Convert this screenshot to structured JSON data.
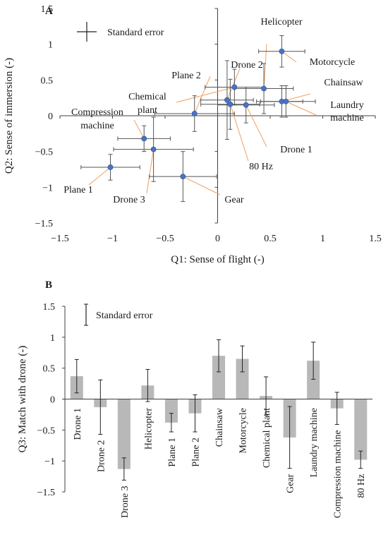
{
  "chart_data": [
    {
      "type": "scatter",
      "panel_label": "A",
      "xlabel": "Q1: Sense of flight (-)",
      "ylabel": "Q2: Sense of immersion (-)",
      "xlim": [
        -1.5,
        1.5
      ],
      "ylim": [
        -1.5,
        1.5
      ],
      "xticks": [
        -1.5,
        -1,
        -0.5,
        0,
        0.5,
        1,
        1.5
      ],
      "yticks": [
        -1.5,
        -1,
        -0.5,
        0,
        0.5,
        1,
        1.5
      ],
      "tick_labels": [
        "−1.5",
        "−1",
        "−0.5",
        "0",
        "0.5",
        "1",
        "1.5"
      ],
      "legend_label": "Standard error",
      "grid": false,
      "marker_color": "#4a72c4",
      "leader_color": "#f0a060",
      "points": [
        {
          "name": "Drone 1",
          "x": 0.27,
          "y": 0.15,
          "xerr": 0.27,
          "yerr": 0.25
        },
        {
          "name": "Drone 2",
          "x": 0.09,
          "y": 0.22,
          "xerr": 0.25,
          "yerr": 0.55
        },
        {
          "name": "Drone 3",
          "x": -0.61,
          "y": -0.47,
          "xerr": 0.38,
          "yerr": 0.45
        },
        {
          "name": "Helicopter",
          "x": 0.44,
          "y": 0.38,
          "xerr": 0.28,
          "yerr": 0.35
        },
        {
          "name": "Plane 1",
          "x": -1.02,
          "y": -0.72,
          "xerr": 0.28,
          "yerr": 0.18
        },
        {
          "name": "Plane 2",
          "x": -0.22,
          "y": 0.03,
          "xerr": 0.38,
          "yerr": 0.25
        },
        {
          "name": "Chainsaw",
          "x": 0.61,
          "y": 0.2,
          "xerr": 0.2,
          "yerr": 0.22
        },
        {
          "name": "Motorcycle",
          "x": 0.61,
          "y": 0.9,
          "xerr": 0.22,
          "yerr": 0.22
        },
        {
          "name": "Chemical plant",
          "x": 0.16,
          "y": 0.4,
          "xerr": 0.28,
          "yerr": 0.25
        },
        {
          "name": "Gear",
          "x": -0.33,
          "y": -0.85,
          "xerr": 0.32,
          "yerr": 0.35
        },
        {
          "name": "Laundry machine",
          "x": 0.65,
          "y": 0.2,
          "xerr": 0.28,
          "yerr": 0.22
        },
        {
          "name": "Compression machine",
          "x": -0.7,
          "y": -0.32,
          "xerr": 0.25,
          "yerr": 0.18
        },
        {
          "name": "80 Hz",
          "x": 0.12,
          "y": 0.16,
          "xerr": 0.28,
          "yerr": 0.35
        }
      ],
      "labels": [
        {
          "text": "Helicopter",
          "for": "Helicopter"
        },
        {
          "text": "Motorcycle",
          "for": "Motorcycle"
        },
        {
          "text": "Drone 2",
          "for": "Drone 2"
        },
        {
          "text": "Plane 2",
          "for": "Plane 2"
        },
        {
          "text": "Chainsaw",
          "for": "Chainsaw"
        },
        {
          "text": "Chemical",
          "for": "Chemical plant"
        },
        {
          "text": "plant",
          "for": null
        },
        {
          "text": "Laundry",
          "for": "Laundry machine"
        },
        {
          "text": "machine",
          "for": null
        },
        {
          "text": "Compression",
          "for": "Compression machine"
        },
        {
          "text": "machine",
          "for": null
        },
        {
          "text": "Drone 1",
          "for": "Drone 1"
        },
        {
          "text": "80 Hz",
          "for": "80 Hz"
        },
        {
          "text": "Plane 1",
          "for": "Plane 1"
        },
        {
          "text": "Drone 3",
          "for": "Drone 3"
        },
        {
          "text": "Gear",
          "for": "Gear"
        }
      ]
    },
    {
      "type": "bar",
      "panel_label": "B",
      "ylabel": "Q3: Match with drone (-)",
      "ylim": [
        -1.5,
        1.5
      ],
      "yticks": [
        -1.5,
        -1,
        -0.5,
        0,
        0.5,
        1,
        1.5
      ],
      "tick_labels": [
        "−1.5",
        "−1",
        "−0.5",
        "0",
        "0.5",
        "1",
        "1.5"
      ],
      "legend_label": "Standard error",
      "grid": false,
      "bar_color": "#b8b8b8",
      "categories": [
        "Drone 1",
        "Drone 2",
        "Drone 3",
        "Helicopter",
        "Plane 1",
        "Plane 2",
        "Chainsaw",
        "Motorcycle",
        "Chemical plant",
        "Gear",
        "Laundry machine",
        "Compression machine",
        "80 Hz"
      ],
      "values": [
        0.37,
        -0.13,
        -1.13,
        0.22,
        -0.38,
        -0.23,
        0.7,
        0.65,
        0.05,
        -0.62,
        0.62,
        -0.15,
        -0.98
      ],
      "errors": [
        0.27,
        0.44,
        0.18,
        0.26,
        0.15,
        0.3,
        0.26,
        0.21,
        0.31,
        0.5,
        0.3,
        0.26,
        0.14
      ]
    }
  ]
}
